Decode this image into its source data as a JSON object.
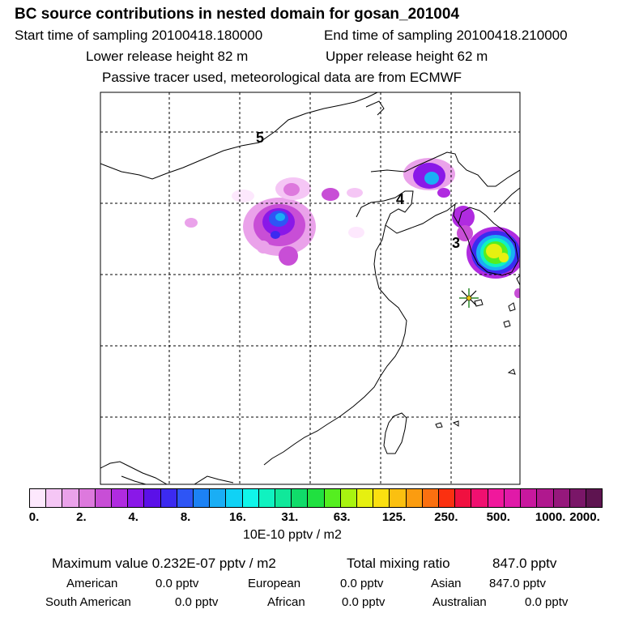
{
  "header": {
    "title": "BC  source contributions in nested domain for gosan_201004",
    "start_time": "Start time of sampling 20100418.180000",
    "end_time": "End time of sampling 20100418.210000",
    "lower_height": "Lower release height   82 m",
    "upper_height": "Upper release height   62 m",
    "tracer_note": "Passive tracer used, meteorological data are from ECMWF"
  },
  "map": {
    "contour_labels": [
      "5",
      "4",
      "3"
    ],
    "receptor_marker": "star-icon"
  },
  "colorbar": {
    "colors": [
      "#fde8fd",
      "#f5c6f5",
      "#eaa2ea",
      "#dd79dd",
      "#c84ed6",
      "#b02be0",
      "#8a18e8",
      "#5b10e8",
      "#3c2af0",
      "#2e55f5",
      "#1c82f5",
      "#1aaef5",
      "#10d2f5",
      "#10f5ea",
      "#10f2c0",
      "#10e89a",
      "#10dc6a",
      "#20e040",
      "#55ee20",
      "#a8f410",
      "#e6f010",
      "#fbe010",
      "#fbc010",
      "#fb9c10",
      "#fb7010",
      "#fb3010",
      "#f01040",
      "#f01070",
      "#f0189c",
      "#e01aa8",
      "#c8189e",
      "#b0188e",
      "#96187c",
      "#7a1668",
      "#5e1450"
    ],
    "tick_labels": [
      "0.",
      "2.",
      "4.",
      "8.",
      "16.",
      "31.",
      "63.",
      "125.",
      "250.",
      "500.",
      "1000.",
      "2000."
    ],
    "units": "10E-10 pptv / m2"
  },
  "stats": {
    "maximum_value": "Maximum value  0.232E-07 pptv / m2",
    "total_mixing": "Total mixing ratio",
    "total_value": "847.0 pptv",
    "regions": [
      {
        "name": "American",
        "value": "0.0 pptv"
      },
      {
        "name": "European",
        "value": "0.0 pptv"
      },
      {
        "name": "Asian",
        "value": "847.0 pptv"
      },
      {
        "name": "South American",
        "value": "0.0 pptv"
      },
      {
        "name": "African",
        "value": "0.0 pptv"
      },
      {
        "name": "Australian",
        "value": "0.0 pptv"
      }
    ]
  }
}
